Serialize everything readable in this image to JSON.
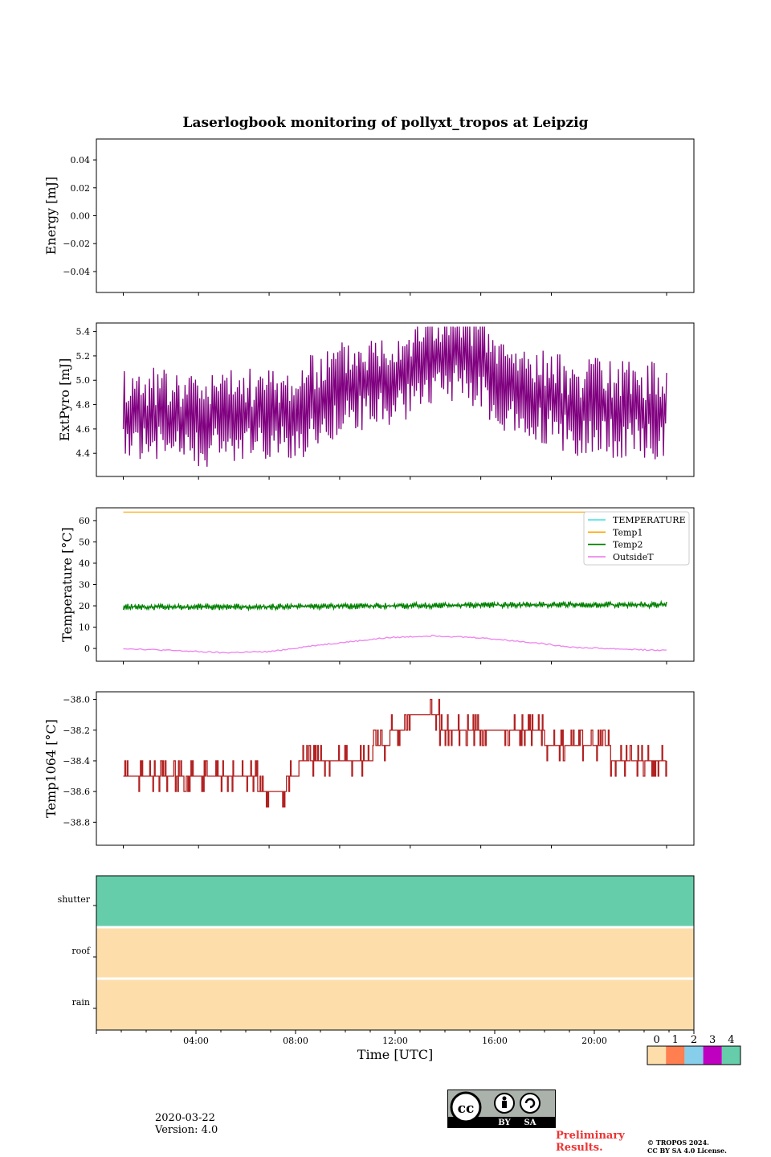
{
  "title": "Laserlogbook monitoring of pollyxt_tropos at Leipzig",
  "xlabel": "Time [UTC]",
  "x_ticks": [
    "04:00",
    "08:00",
    "12:00",
    "16:00",
    "20:00"
  ],
  "footer": {
    "date": "2020-03-22",
    "version": "Version: 4.0",
    "preliminary_line1": "Preliminary",
    "preliminary_line2": "Results.",
    "copyright_line1": "© TROPOS 2024.",
    "copyright_line2": "CC BY SA 4.0 License."
  },
  "license_badge": {
    "by": "BY",
    "sa": "SA",
    "cc": "cc"
  },
  "chart_data": [
    {
      "type": "line",
      "ylabel": "Energy [mJ]",
      "ylim": [
        -0.055,
        0.055
      ],
      "yticks": [
        0.04,
        0.02,
        0.0,
        -0.02,
        -0.04
      ],
      "ytick_labels": [
        "0.04",
        "0.02",
        "0.00",
        "−0.02",
        "−0.04"
      ],
      "series": []
    },
    {
      "type": "line",
      "ylabel": "ExtPyro [mJ]",
      "ylim": [
        4.21,
        5.47
      ],
      "yticks": [
        5.4,
        5.2,
        5.0,
        4.8,
        4.6,
        4.4
      ],
      "ytick_labels": [
        "5.4",
        "5.2",
        "5.0",
        "4.8",
        "4.6",
        "4.4"
      ],
      "series": [
        {
          "name": "ExtPyro",
          "color": "#800080",
          "x_hours": [
            0.8,
            4,
            8,
            10,
            12,
            14,
            15.5,
            17,
            20,
            23.9
          ],
          "mean": [
            4.72,
            4.68,
            4.72,
            4.93,
            5.02,
            5.18,
            5.22,
            4.95,
            4.78,
            4.75
          ],
          "amplitude_peak_to_peak": 0.6,
          "min": 4.27,
          "max": 5.44
        }
      ]
    },
    {
      "type": "line",
      "ylabel": "Temperature [°C]",
      "ylim": [
        -6,
        66
      ],
      "yticks": [
        60,
        50,
        40,
        30,
        20,
        10,
        0
      ],
      "ytick_labels": [
        "60",
        "50",
        "40",
        "30",
        "20",
        "10",
        "0"
      ],
      "legend": [
        "TEMPERATURE",
        "Temp1",
        "Temp2",
        "OutsideT"
      ],
      "legend_location": "upper right",
      "series": [
        {
          "name": "TEMPERATURE",
          "color": "#40e0e0",
          "x_hours": [],
          "values": []
        },
        {
          "name": "Temp1",
          "color": "#ffa500",
          "x_hours": [
            0.8,
            23.9
          ],
          "values": [
            64,
            64
          ]
        },
        {
          "name": "Temp2",
          "color": "#008000",
          "x_hours": [
            0.8,
            6,
            12,
            18,
            23.9
          ],
          "values": [
            19.5,
            19.5,
            20,
            20.5,
            20.5
          ],
          "noise": 1.5
        },
        {
          "name": "OutsideT",
          "color": "#ee82ee",
          "x_hours": [
            0.8,
            3,
            5,
            7,
            9,
            12,
            14,
            16,
            18,
            20,
            23.9
          ],
          "values": [
            0,
            -1,
            -2,
            -1.5,
            1.5,
            5,
            6,
            5,
            3,
            0.5,
            -1
          ]
        }
      ]
    },
    {
      "type": "line",
      "ylabel": "Temp1064 [°C]",
      "ylim": [
        -38.95,
        -37.95
      ],
      "yticks": [
        -38.0,
        -38.2,
        -38.4,
        -38.6,
        -38.8
      ],
      "ytick_labels": [
        "−38.0",
        "−38.2",
        "−38.4",
        "−38.6",
        "−38.8"
      ],
      "series": [
        {
          "name": "Temp1064",
          "color": "#b22222",
          "x_hours": [
            0.8,
            2,
            5.5,
            7.5,
            8,
            8.5,
            11,
            12.5,
            13,
            15.5,
            17,
            20.5,
            22.5,
            23.9
          ],
          "values": [
            -38.5,
            -38.5,
            -38.5,
            -38.6,
            -38.5,
            -38.4,
            -38.4,
            -38.2,
            -38.1,
            -38.2,
            -38.2,
            -38.3,
            -38.4,
            -38.4
          ]
        }
      ]
    },
    {
      "type": "heatmap",
      "rows": [
        "shutter",
        "roof",
        "rain"
      ],
      "row_colors": [
        "#66cdaa",
        "#fddeab",
        "#fddeab"
      ],
      "colorbar": {
        "ticks": [
          "0",
          "1",
          "2",
          "3",
          "4"
        ],
        "colors": [
          "#fddeab",
          "#ff7f50",
          "#87ceeb",
          "#c000c0",
          "#66cdaa"
        ]
      }
    }
  ]
}
